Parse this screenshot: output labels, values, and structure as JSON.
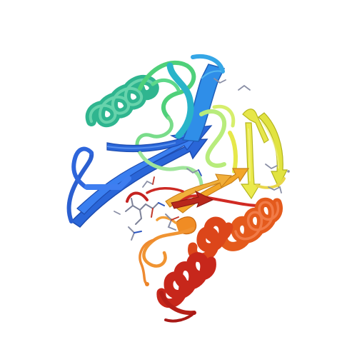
{
  "image": {
    "kind": "protein ribbon cartoon",
    "background": "#ffffff",
    "palette": {
      "blue": "#2f6fe0",
      "blue_dark": "#1f4fc8",
      "teal": "#3aa7a0",
      "cyan": "#2cc7c7",
      "green": "#3fcf8a",
      "green_light": "#9bea7a",
      "yellow": "#e8e84a",
      "yellow_dark": "#d2d33a",
      "orange": "#f0a12a",
      "orange_dark": "#e27a1f",
      "red_orange": "#e0561e",
      "red": "#c8281f",
      "red_dark": "#a81916",
      "ligand": "#8a8fa6",
      "ligand_dark": "#5b5f74",
      "ligand_red": "#c0392b",
      "ligand_blue": "#2b55c0"
    }
  }
}
